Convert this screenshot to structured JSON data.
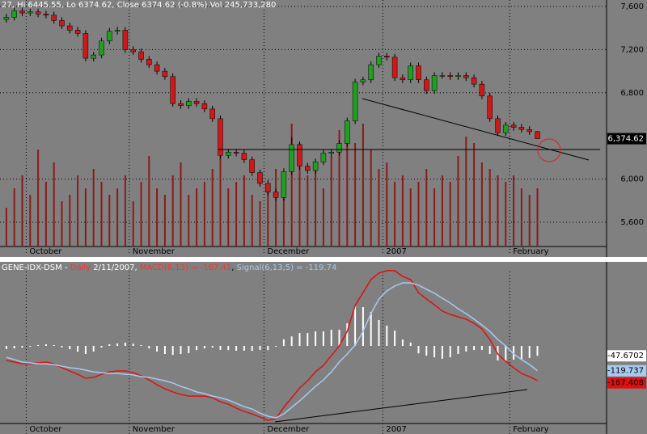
{
  "chart_data": [
    {
      "type": "candlestick",
      "title": "27, Hi 6445.55, Lo 6374.62, Close 6374.62 (-0.8%) Vol 245,733,280",
      "categories": [
        null,
        null,
        null,
        "October",
        null,
        null,
        null,
        null,
        null,
        null,
        null,
        null,
        null,
        null,
        null,
        null,
        "November",
        null,
        null,
        null,
        null,
        null,
        null,
        null,
        null,
        null,
        null,
        null,
        null,
        null,
        null,
        null,
        null,
        "December",
        null,
        null,
        null,
        null,
        null,
        null,
        null,
        null,
        null,
        null,
        null,
        null,
        null,
        null,
        "2007",
        null,
        null,
        null,
        null,
        null,
        null,
        null,
        null,
        null,
        null,
        null,
        null,
        null,
        null,
        null,
        "February",
        null,
        null,
        null
      ],
      "open": [
        7480,
        7500,
        7560,
        7540,
        7550,
        7530,
        7520,
        7470,
        7420,
        7380,
        7350,
        7120,
        7150,
        7280,
        7370,
        7380,
        7200,
        7180,
        7110,
        7060,
        7000,
        6950,
        6700,
        6680,
        6720,
        6700,
        6650,
        6560,
        6220,
        6250,
        6240,
        6180,
        6060,
        5960,
        5880,
        5830,
        6070,
        6320,
        6120,
        6080,
        6160,
        6240,
        6250,
        6330,
        6540,
        6900,
        6920,
        7060,
        7140,
        7130,
        6940,
        6920,
        7050,
        6920,
        6820,
        6960,
        6960,
        6950,
        6960,
        6940,
        6880,
        6770,
        6560,
        6430,
        6500,
        6480,
        6460,
        6440
      ],
      "high": [
        7530,
        7590,
        7590,
        7580,
        7580,
        7560,
        7550,
        7500,
        7450,
        7410,
        7380,
        7180,
        7310,
        7400,
        7410,
        7410,
        7230,
        7210,
        7140,
        7090,
        7030,
        6980,
        6730,
        6750,
        6750,
        6730,
        6680,
        6590,
        6280,
        6280,
        6270,
        6210,
        6090,
        5990,
        5910,
        6100,
        6390,
        6350,
        6150,
        6190,
        6270,
        6280,
        6360,
        6570,
        6930,
        6950,
        7090,
        7170,
        7170,
        7160,
        6970,
        7080,
        7080,
        6950,
        6990,
        6990,
        6990,
        6990,
        6990,
        6970,
        6910,
        6800,
        6590,
        6530,
        6530,
        6510,
        6490,
        6445.55
      ],
      "low": [
        7450,
        7470,
        7510,
        7510,
        7500,
        7490,
        7440,
        7390,
        7350,
        7320,
        7090,
        7090,
        7120,
        7250,
        7340,
        7170,
        7150,
        7080,
        7030,
        6970,
        6920,
        6670,
        6650,
        6650,
        6670,
        6620,
        6530,
        6190,
        6190,
        6210,
        6150,
        6030,
        5930,
        5850,
        5800,
        5800,
        6040,
        6090,
        6050,
        6050,
        6130,
        6210,
        6220,
        6300,
        6510,
        6870,
        6890,
        7030,
        7100,
        6910,
        6890,
        6890,
        6890,
        6790,
        6790,
        6930,
        6920,
        6920,
        6910,
        6850,
        6740,
        6530,
        6400,
        6400,
        6450,
        6430,
        6410,
        6374.62
      ],
      "close": [
        7500,
        7560,
        7540,
        7550,
        7530,
        7520,
        7470,
        7420,
        7380,
        7350,
        7120,
        7150,
        7280,
        7370,
        7380,
        7200,
        7180,
        7110,
        7060,
        7000,
        6950,
        6700,
        6680,
        6720,
        6700,
        6650,
        6560,
        6220,
        6250,
        6240,
        6180,
        6060,
        5960,
        5880,
        5830,
        6070,
        6320,
        6120,
        6080,
        6160,
        6240,
        6250,
        6330,
        6540,
        6900,
        6920,
        7060,
        7140,
        7130,
        6940,
        6920,
        7050,
        6920,
        6820,
        6960,
        6960,
        6950,
        6960,
        6940,
        6880,
        6770,
        6560,
        6430,
        6500,
        6480,
        6460,
        6440,
        6374.62
      ],
      "volume": [
        30,
        45,
        55,
        40,
        75,
        50,
        65,
        35,
        40,
        55,
        45,
        60,
        50,
        40,
        45,
        55,
        35,
        50,
        70,
        45,
        40,
        55,
        65,
        40,
        45,
        50,
        60,
        70,
        45,
        50,
        55,
        40,
        35,
        45,
        60,
        50,
        95,
        80,
        55,
        60,
        45,
        70,
        90,
        85,
        80,
        95,
        75,
        60,
        65,
        50,
        55,
        45,
        50,
        60,
        45,
        55,
        50,
        70,
        85,
        80,
        65,
        60,
        55,
        50,
        55,
        45,
        40,
        45
      ],
      "up_color": "#1fa01f",
      "down_color": "#d01818",
      "volume_color": "#8b1a1a",
      "ylim": [
        5293,
        7660
      ],
      "yticks": [
        {
          "value": 7600,
          "label": "7,600"
        },
        {
          "value": 7200,
          "label": "7,200"
        },
        {
          "value": 6800,
          "label": "6,800"
        },
        {
          "value": 6000,
          "label": "6,000"
        },
        {
          "value": 5600,
          "label": "5,600"
        }
      ],
      "last_price": {
        "value": 6374.62,
        "label": "6,374.62"
      }
    },
    {
      "type": "macd",
      "symbol": "GENE-IDX-DSM -",
      "interval": "Daily",
      "date": "2/11/2007,",
      "categories": [
        null,
        null,
        null,
        "October",
        null,
        null,
        null,
        null,
        null,
        null,
        null,
        null,
        null,
        null,
        null,
        null,
        "November",
        null,
        null,
        null,
        null,
        null,
        null,
        null,
        null,
        null,
        null,
        null,
        null,
        null,
        null,
        null,
        null,
        "December",
        null,
        null,
        null,
        null,
        null,
        null,
        null,
        null,
        null,
        null,
        null,
        null,
        null,
        null,
        "2007",
        null,
        null,
        null,
        null,
        null,
        null,
        null,
        null,
        null,
        null,
        null,
        null,
        null,
        null,
        null,
        "February",
        null,
        null,
        null
      ],
      "series": [
        {
          "name": "MACD(6,13) = -167.41",
          "color": "#e01010",
          "values": [
            -70,
            -78,
            -86,
            -86,
            -82,
            -78,
            -86,
            -105,
            -121,
            -137,
            -156,
            -152,
            -137,
            -125,
            -121,
            -121,
            -129,
            -144,
            -164,
            -187,
            -207,
            -222,
            -234,
            -242,
            -242,
            -242,
            -250,
            -269,
            -281,
            -300,
            -316,
            -328,
            -343,
            -359,
            -351,
            -296,
            -250,
            -203,
            -168,
            -125,
            -94,
            -47,
            0,
            70,
            195,
            257,
            320,
            351,
            363,
            363,
            335,
            320,
            257,
            226,
            199,
            168,
            152,
            140,
            129,
            109,
            82,
            31,
            -39,
            -74,
            -105,
            -133,
            -148,
            -167.408
          ]
        },
        {
          "name": "Signal(6,13,5) = -119.74",
          "color": "#a6caf0",
          "values": [
            -55,
            -66,
            -78,
            -82,
            -86,
            -86,
            -90,
            -98,
            -105,
            -109,
            -117,
            -125,
            -129,
            -133,
            -133,
            -137,
            -140,
            -148,
            -152,
            -160,
            -168,
            -179,
            -195,
            -207,
            -222,
            -230,
            -242,
            -250,
            -261,
            -277,
            -293,
            -304,
            -324,
            -339,
            -347,
            -328,
            -296,
            -265,
            -230,
            -195,
            -164,
            -125,
            -78,
            -39,
            4,
            70,
            156,
            226,
            265,
            289,
            304,
            304,
            293,
            273,
            254,
            230,
            207,
            179,
            156,
            129,
            101,
            70,
            31,
            0,
            -39,
            -66,
            -90,
            -119.737
          ]
        }
      ],
      "histogram": {
        "color": "#ffffff",
        "values": [
          -15,
          -12,
          -8,
          -4,
          4,
          8,
          4,
          -7,
          -16,
          -28,
          -39,
          -27,
          -8,
          8,
          12,
          16,
          11,
          4,
          -12,
          -27,
          -39,
          -43,
          -39,
          -35,
          -20,
          -12,
          -8,
          -19,
          -20,
          -23,
          -23,
          -24,
          -19,
          -20,
          -4,
          32,
          46,
          62,
          62,
          70,
          70,
          78,
          78,
          109,
          191,
          187,
          164,
          125,
          98,
          74,
          31,
          16,
          -36,
          -47,
          -55,
          -62,
          -55,
          -39,
          -27,
          -20,
          -19,
          -39,
          -70,
          -74,
          -66,
          -67,
          -58,
          -47.6702
        ]
      },
      "ylim": [
        -378,
        382
      ]
    }
  ]
}
